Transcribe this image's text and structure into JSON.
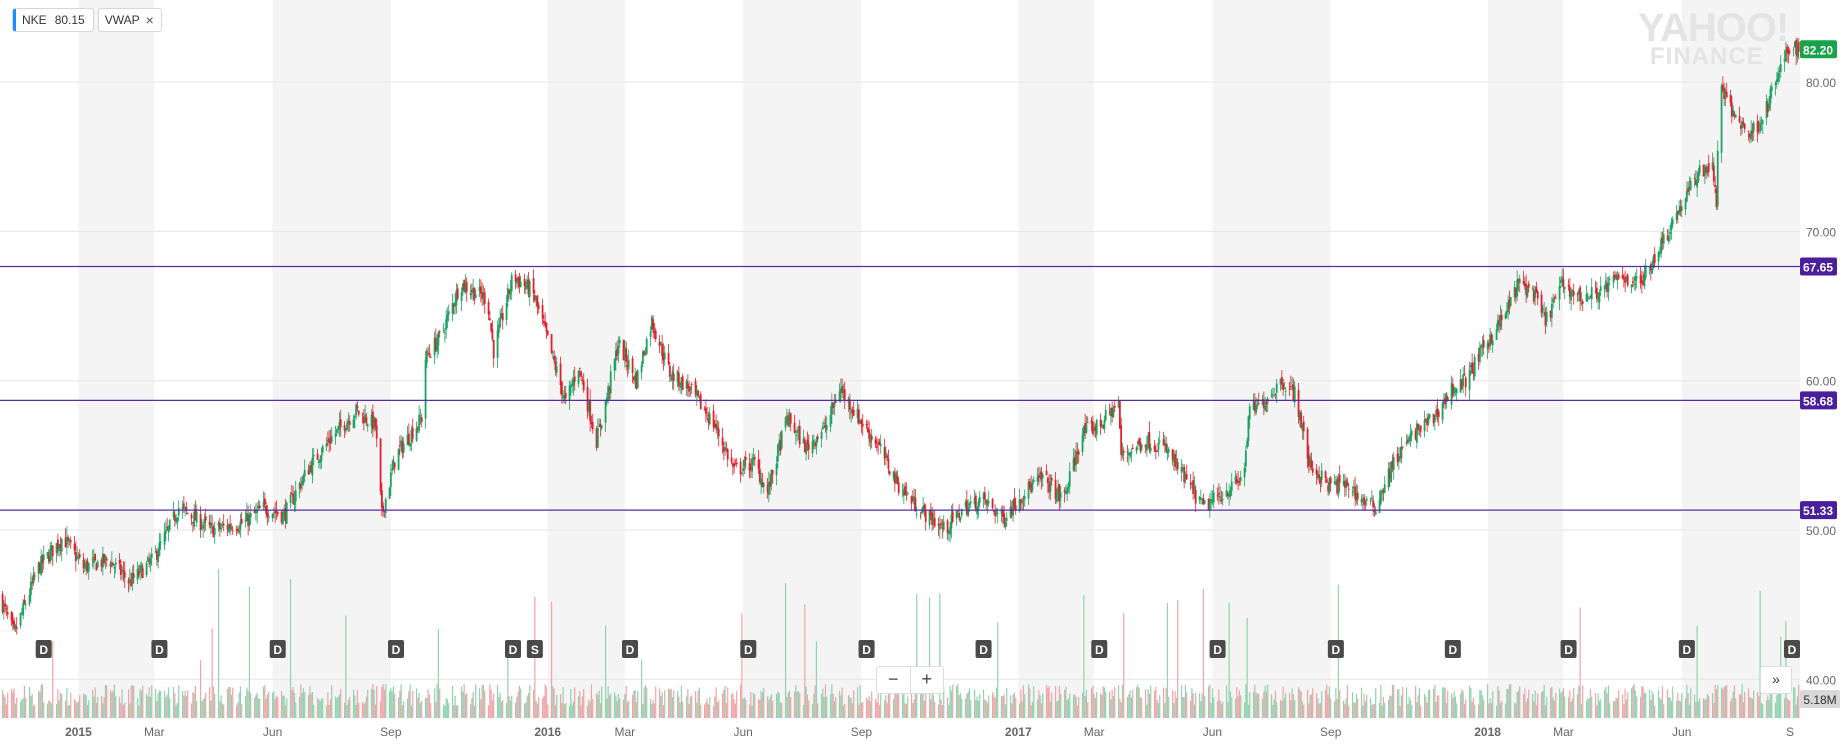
{
  "legend": {
    "ticker": "NKE",
    "ticker_value": "80.15",
    "indicator": "VWAP",
    "close_symbol": "×"
  },
  "watermark": {
    "line1": "YAHOO!",
    "line2": "FINANCE"
  },
  "zoom": {
    "minus": "−",
    "plus": "+"
  },
  "scroll_button": "»",
  "colors": {
    "up": "#1aa260",
    "down": "#e0212b",
    "vol_up": "#8fd3b0",
    "vol_down": "#f0a4a8",
    "level_line": "#5a2ca0",
    "level_tag": "#4a1f9b",
    "last_tag": "#16a34a",
    "band": "#f4f4f4",
    "grid": "#e6e6e6",
    "axis_text": "#666666",
    "divider_tag": "#4a4a4a"
  },
  "chart_data": {
    "type": "candlestick",
    "ticker": "NKE",
    "xlim": [
      "2014-11-01",
      "2018-09-01"
    ],
    "ylim": [
      40,
      85
    ],
    "y_ticks": [
      40,
      50,
      60,
      70,
      80
    ],
    "y_tick_labels": [
      "40.00",
      "50.00",
      "60.00",
      "70.00",
      "80.00"
    ],
    "x_ticks": [
      {
        "date": "2015-01-01",
        "label": "2015",
        "bold": true
      },
      {
        "date": "2015-03-01",
        "label": "Mar"
      },
      {
        "date": "2015-06-01",
        "label": "Jun"
      },
      {
        "date": "2015-09-01",
        "label": "Sep"
      },
      {
        "date": "2016-01-01",
        "label": "2016",
        "bold": true
      },
      {
        "date": "2016-03-01",
        "label": "Mar"
      },
      {
        "date": "2016-06-01",
        "label": "Jun"
      },
      {
        "date": "2016-09-01",
        "label": "Sep"
      },
      {
        "date": "2017-01-01",
        "label": "2017",
        "bold": true
      },
      {
        "date": "2017-03-01",
        "label": "Mar"
      },
      {
        "date": "2017-06-01",
        "label": "Jun"
      },
      {
        "date": "2017-09-01",
        "label": "Sep"
      },
      {
        "date": "2018-01-01",
        "label": "2018",
        "bold": true
      },
      {
        "date": "2018-03-01",
        "label": "Mar"
      },
      {
        "date": "2018-06-01",
        "label": "Jun"
      },
      {
        "date": "2018-09-01",
        "label": "S"
      }
    ],
    "horizontal_lines": [
      {
        "value": 67.65,
        "label": "67.65"
      },
      {
        "value": 58.68,
        "label": "58.68"
      },
      {
        "value": 51.33,
        "label": "51.33"
      }
    ],
    "last_price": {
      "value": 82.2,
      "label": "82.20"
    },
    "volume_label": "5.18M",
    "events": [
      {
        "date": "2014-12-05",
        "label": "D"
      },
      {
        "date": "2015-03-05",
        "label": "D"
      },
      {
        "date": "2015-06-05",
        "label": "D"
      },
      {
        "date": "2015-09-05",
        "label": "D"
      },
      {
        "date": "2015-12-05",
        "label": "D"
      },
      {
        "date": "2015-12-22",
        "label": "S"
      },
      {
        "date": "2016-03-05",
        "label": "D"
      },
      {
        "date": "2016-06-05",
        "label": "D"
      },
      {
        "date": "2016-09-05",
        "label": "D"
      },
      {
        "date": "2016-12-05",
        "label": "D"
      },
      {
        "date": "2017-03-05",
        "label": "D"
      },
      {
        "date": "2017-06-05",
        "label": "D"
      },
      {
        "date": "2017-09-05",
        "label": "D"
      },
      {
        "date": "2017-12-05",
        "label": "D"
      },
      {
        "date": "2018-03-05",
        "label": "D"
      },
      {
        "date": "2018-06-05",
        "label": "D"
      },
      {
        "date": "2018-09-01",
        "label": "D"
      }
    ],
    "price_path": [
      [
        "2014-11-01",
        45.5
      ],
      [
        "2014-11-12",
        43.0
      ],
      [
        "2014-12-01",
        47.5
      ],
      [
        "2014-12-20",
        49.5
      ],
      [
        "2015-01-05",
        47.5
      ],
      [
        "2015-01-25",
        48.0
      ],
      [
        "2015-02-10",
        46.5
      ],
      [
        "2015-02-28",
        48.0
      ],
      [
        "2015-03-12",
        50.0
      ],
      [
        "2015-03-20",
        51.5
      ],
      [
        "2015-04-15",
        50.0
      ],
      [
        "2015-05-10",
        50.5
      ],
      [
        "2015-05-25",
        51.5
      ],
      [
        "2015-06-10",
        51.0
      ],
      [
        "2015-06-28",
        54.0
      ],
      [
        "2015-07-15",
        56.0
      ],
      [
        "2015-08-05",
        58.0
      ],
      [
        "2015-08-20",
        57.0
      ],
      [
        "2015-08-25",
        51.0
      ],
      [
        "2015-09-05",
        55.0
      ],
      [
        "2015-09-25",
        57.5
      ],
      [
        "2015-09-28",
        61.5
      ],
      [
        "2015-10-10",
        63.0
      ],
      [
        "2015-10-25",
        66.5
      ],
      [
        "2015-11-15",
        65.5
      ],
      [
        "2015-11-20",
        62.0
      ],
      [
        "2015-12-05",
        67.0
      ],
      [
        "2015-12-20",
        66.0
      ],
      [
        "2015-12-31",
        63.0
      ],
      [
        "2016-01-15",
        58.5
      ],
      [
        "2016-01-25",
        61.0
      ],
      [
        "2016-02-08",
        56.0
      ],
      [
        "2016-02-15",
        58.5
      ],
      [
        "2016-02-25",
        62.5
      ],
      [
        "2016-03-10",
        60.0
      ],
      [
        "2016-03-22",
        64.0
      ],
      [
        "2016-04-05",
        60.5
      ],
      [
        "2016-04-20",
        59.5
      ],
      [
        "2016-05-10",
        57.0
      ],
      [
        "2016-05-25",
        54.0
      ],
      [
        "2016-06-10",
        54.5
      ],
      [
        "2016-06-20",
        52.5
      ],
      [
        "2016-07-05",
        57.5
      ],
      [
        "2016-07-20",
        55.5
      ],
      [
        "2016-08-05",
        57.0
      ],
      [
        "2016-08-15",
        59.5
      ],
      [
        "2016-08-30",
        57.5
      ],
      [
        "2016-09-15",
        55.5
      ],
      [
        "2016-09-30",
        53.0
      ],
      [
        "2016-10-15",
        51.5
      ],
      [
        "2016-11-05",
        50.0
      ],
      [
        "2016-11-20",
        51.5
      ],
      [
        "2016-12-05",
        52.0
      ],
      [
        "2016-12-20",
        50.8
      ],
      [
        "2017-01-05",
        52.5
      ],
      [
        "2017-01-20",
        53.5
      ],
      [
        "2017-02-05",
        52.0
      ],
      [
        "2017-02-20",
        56.5
      ],
      [
        "2017-03-05",
        57.0
      ],
      [
        "2017-03-20",
        58.5
      ],
      [
        "2017-03-22",
        55.0
      ],
      [
        "2017-04-10",
        56.0
      ],
      [
        "2017-04-25",
        55.5
      ],
      [
        "2017-05-10",
        53.5
      ],
      [
        "2017-05-25",
        51.5
      ],
      [
        "2017-06-10",
        52.5
      ],
      [
        "2017-06-25",
        53.5
      ],
      [
        "2017-06-30",
        58.0
      ],
      [
        "2017-07-10",
        58.5
      ],
      [
        "2017-07-25",
        60.0
      ],
      [
        "2017-08-05",
        59.0
      ],
      [
        "2017-08-15",
        54.5
      ],
      [
        "2017-08-30",
        53.0
      ],
      [
        "2017-09-15",
        53.0
      ],
      [
        "2017-09-25",
        52.0
      ],
      [
        "2017-10-05",
        51.5
      ],
      [
        "2017-10-20",
        54.5
      ],
      [
        "2017-11-05",
        56.5
      ],
      [
        "2017-11-20",
        57.5
      ],
      [
        "2017-12-05",
        59.5
      ],
      [
        "2017-12-15",
        60.0
      ],
      [
        "2017-12-31",
        62.5
      ],
      [
        "2018-01-15",
        64.5
      ],
      [
        "2018-01-25",
        66.5
      ],
      [
        "2018-02-05",
        66.0
      ],
      [
        "2018-02-15",
        64.0
      ],
      [
        "2018-02-28",
        66.5
      ],
      [
        "2018-03-15",
        65.5
      ],
      [
        "2018-03-30",
        66.0
      ],
      [
        "2018-04-15",
        67.0
      ],
      [
        "2018-04-30",
        66.5
      ],
      [
        "2018-05-15",
        69.0
      ],
      [
        "2018-05-30",
        71.5
      ],
      [
        "2018-06-15",
        74.0
      ],
      [
        "2018-06-25",
        74.5
      ],
      [
        "2018-06-28",
        71.5
      ],
      [
        "2018-06-30",
        80.0
      ],
      [
        "2018-07-10",
        78.0
      ],
      [
        "2018-07-25",
        76.5
      ],
      [
        "2018-08-05",
        78.0
      ],
      [
        "2018-08-15",
        80.5
      ],
      [
        "2018-08-25",
        82.5
      ],
      [
        "2018-09-01",
        82.2
      ]
    ]
  }
}
